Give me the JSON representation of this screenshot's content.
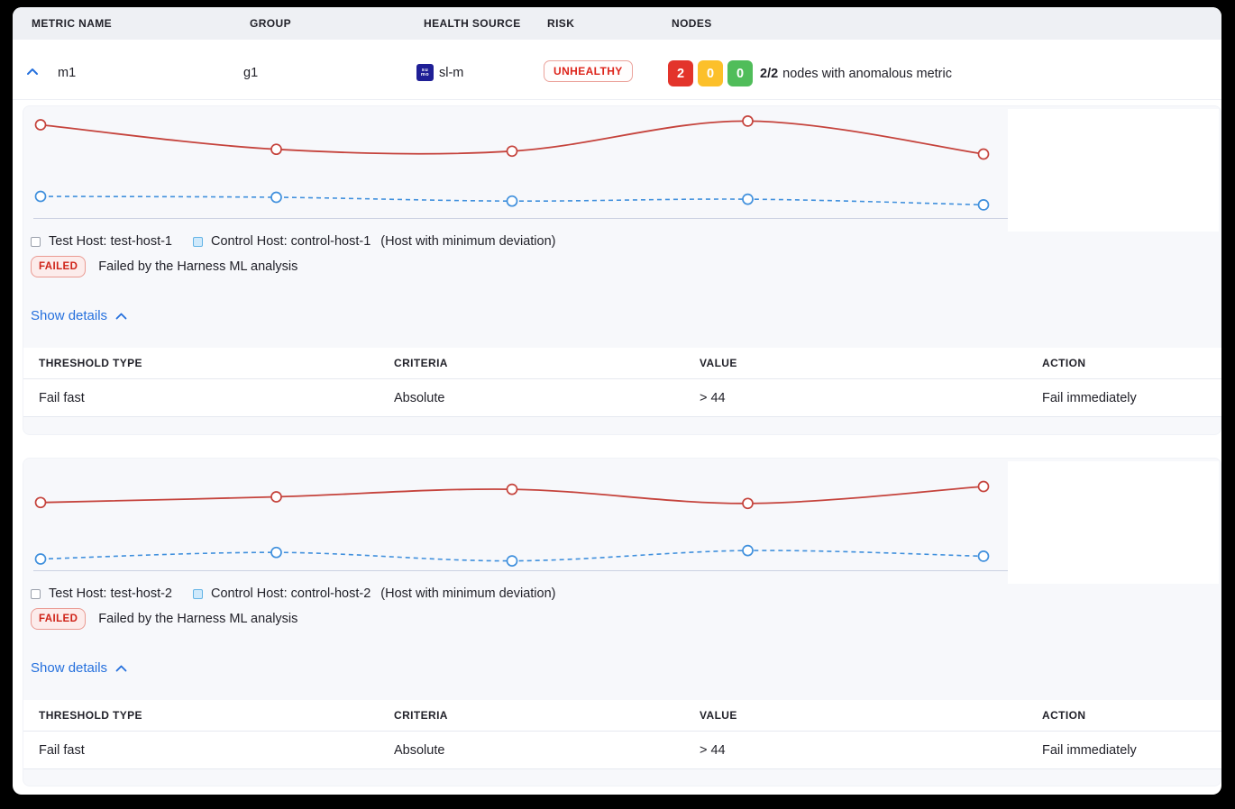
{
  "header": {
    "columns": [
      "METRIC NAME",
      "GROUP",
      "HEALTH SOURCE",
      "RISK",
      "NODES"
    ]
  },
  "metric_row": {
    "metric_name": "m1",
    "group": "g1",
    "health_source": {
      "label": "sl-m",
      "icon_line1": "su",
      "icon_line2": "mo"
    },
    "risk_badge": "UNHEALTHY",
    "node_counts": [
      {
        "count": "2",
        "color": "#e3342b"
      },
      {
        "count": "0",
        "color": "#fcc02a"
      },
      {
        "count": "0",
        "color": "#50bd5a"
      }
    ],
    "summary_ratio": "2/2",
    "summary_text": "nodes with anomalous metric"
  },
  "panels": [
    {
      "legend": {
        "test_label": "Test Host: test-host-1",
        "control_label": "Control Host: control-host-1",
        "note": "(Host with minimum deviation)"
      },
      "status": {
        "badge": "FAILED",
        "message": "Failed by the Harness ML analysis"
      },
      "details_link": "Show details",
      "table": {
        "headers": [
          "THRESHOLD TYPE",
          "CRITERIA",
          "VALUE",
          "ACTION"
        ],
        "row": [
          "Fail fast",
          "Absolute",
          "> 44",
          "Fail immediately"
        ]
      }
    },
    {
      "legend": {
        "test_label": "Test Host: test-host-2",
        "control_label": "Control Host: control-host-2",
        "note": "(Host with minimum deviation)"
      },
      "status": {
        "badge": "FAILED",
        "message": "Failed by the Harness ML analysis"
      },
      "details_link": "Show details",
      "table": {
        "headers": [
          "THRESHOLD TYPE",
          "CRITERIA",
          "VALUE",
          "ACTION"
        ],
        "row": [
          "Fail fast",
          "Absolute",
          "> 44",
          "Fail immediately"
        ]
      }
    }
  ],
  "chart_data": [
    {
      "type": "line",
      "x": [
        1,
        2,
        3,
        4,
        5
      ],
      "ylim": [
        0,
        55
      ],
      "grid": false,
      "legend_position": "bottom",
      "series": [
        {
          "name": "Test Host: test-host-1",
          "color": "#c5433c",
          "style": "solid",
          "values": [
            49,
            36,
            35,
            51,
            33.5
          ]
        },
        {
          "name": "Control Host: control-host-1",
          "color": "#4090dd",
          "style": "dashed",
          "values": [
            11,
            10.5,
            8.5,
            9.5,
            6.5
          ]
        }
      ]
    },
    {
      "type": "line",
      "x": [
        1,
        2,
        3,
        4,
        5
      ],
      "ylim": [
        0,
        55
      ],
      "grid": false,
      "legend_position": "bottom",
      "series": [
        {
          "name": "Test Host: test-host-2",
          "color": "#c5433c",
          "style": "solid",
          "values": [
            35.5,
            38.5,
            42.5,
            35,
            44
          ]
        },
        {
          "name": "Control Host: control-host-2",
          "color": "#4090dd",
          "style": "dashed",
          "values": [
            5.5,
            9,
            4.5,
            10,
            7
          ]
        }
      ]
    }
  ],
  "colors": {
    "accent_blue": "#2570dd",
    "risk_red": "#dd241b",
    "node_red": "#e3342b",
    "node_amber": "#fcc02a",
    "node_green": "#50bd5a",
    "panel_bg": "#f7f8fb",
    "header_bg": "#eef0f4",
    "line_red": "#c5433c",
    "line_blue": "#4090dd"
  }
}
